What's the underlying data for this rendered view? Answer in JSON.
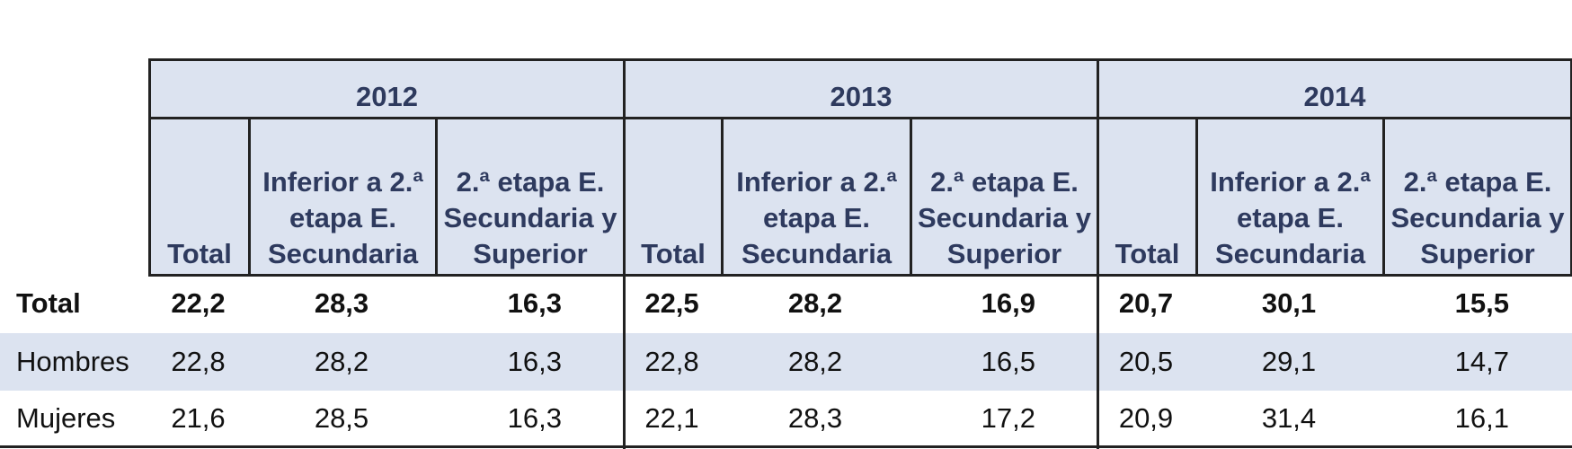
{
  "table": {
    "groups": [
      {
        "year": "2012",
        "columns": [
          "Total",
          "Inferior a 2.ª etapa E. Secundaria",
          "2.ª etapa E. Secundaria y Superior"
        ]
      },
      {
        "year": "2013",
        "columns": [
          "Total",
          "Inferior a 2.ª etapa E. Secundaria",
          "2.ª etapa E. Secundaria y Superior"
        ]
      },
      {
        "year": "2014",
        "columns": [
          "Total",
          "Inferior a 2.ª etapa E. Secundaria",
          "2.ª etapa E. Secundaria y Superior"
        ]
      }
    ],
    "rows": [
      {
        "label": "Total",
        "values": [
          "22,2",
          "28,3",
          "16,3",
          "22,5",
          "28,2",
          "16,9",
          "20,7",
          "30,1",
          "15,5"
        ]
      },
      {
        "label": "Hombres",
        "values": [
          "22,8",
          "28,2",
          "16,3",
          "22,8",
          "28,2",
          "16,5",
          "20,5",
          "29,1",
          "14,7"
        ]
      },
      {
        "label": "Mujeres",
        "values": [
          "21,6",
          "28,5",
          "16,3",
          "22,1",
          "28,3",
          "17,2",
          "20,9",
          "31,4",
          "16,1"
        ]
      }
    ]
  }
}
